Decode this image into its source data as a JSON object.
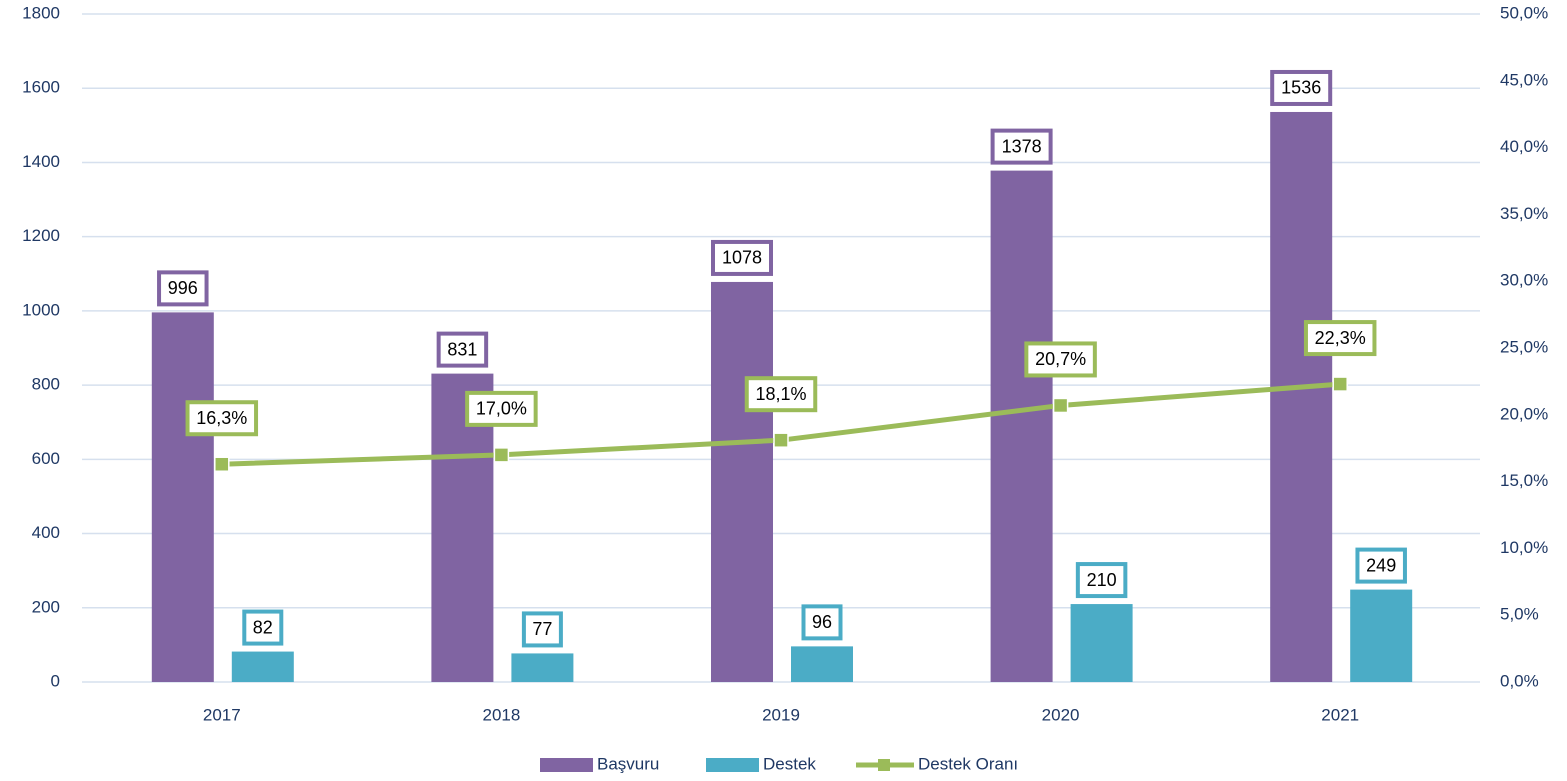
{
  "chart_data": {
    "type": "bar",
    "categories": [
      "2017",
      "2018",
      "2019",
      "2020",
      "2021"
    ],
    "series": [
      {
        "name": "Başvuru",
        "color": "#8064a2",
        "values": [
          996,
          831,
          1078,
          1378,
          1536
        ]
      },
      {
        "name": "Destek",
        "color": "#4bacc6",
        "values": [
          82,
          77,
          96,
          210,
          249
        ]
      },
      {
        "name": "Destek Oranı",
        "type": "line",
        "axis": "y2",
        "color": "#9bbb59",
        "values": [
          16.3,
          17.0,
          18.1,
          20.7,
          22.3
        ],
        "value_labels": [
          "16,3%",
          "17,0%",
          "18,1%",
          "20,7%",
          "22,3%"
        ]
      }
    ],
    "ylim": [
      0,
      1800
    ],
    "yticks": [
      0,
      200,
      400,
      600,
      800,
      1000,
      1200,
      1400,
      1600,
      1800
    ],
    "y2lim": [
      0,
      50
    ],
    "y2ticks": [
      {
        "value": 0,
        "label": "0,0%"
      },
      {
        "value": 5,
        "label": "5,0%"
      },
      {
        "value": 10,
        "label": "10,0%"
      },
      {
        "value": 15,
        "label": "15,0%"
      },
      {
        "value": 20,
        "label": "20,0%"
      },
      {
        "value": 25,
        "label": "25,0%"
      },
      {
        "value": 30,
        "label": "30,0%"
      },
      {
        "value": 35,
        "label": "35,0%"
      },
      {
        "value": 40,
        "label": "40,0%"
      },
      {
        "value": 45,
        "label": "45,0%"
      },
      {
        "value": 50,
        "label": "50,0%"
      }
    ],
    "grid": true,
    "legend": "bottom"
  }
}
